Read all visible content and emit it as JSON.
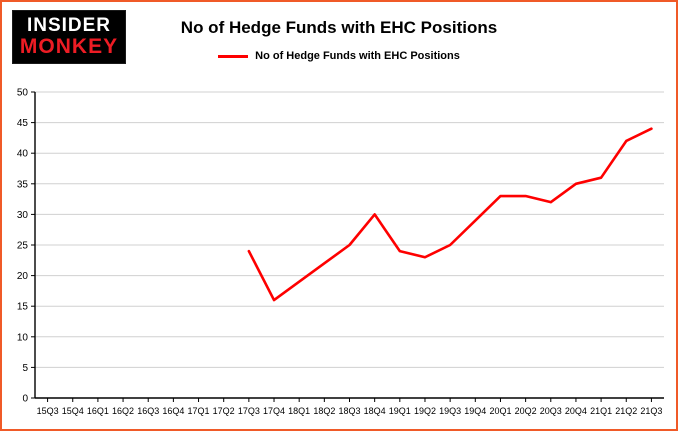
{
  "colors": {
    "frame_border": "#f05a28",
    "line": "#fe0000",
    "grid": "#d0d0d0",
    "axis": "#000000",
    "logo_bg": "#000000",
    "logo_insider": "#ffffff",
    "logo_monkey": "#ed1c24"
  },
  "header": {
    "logo_line1": "INSIDER",
    "logo_line2": "MONKEY",
    "title": "No of Hedge Funds with EHC Positions"
  },
  "legend": {
    "label": "No of Hedge Funds with EHC Positions"
  },
  "chart_data": {
    "type": "line",
    "title": "No of Hedge Funds with EHC Positions",
    "categories": [
      "15Q3",
      "15Q4",
      "16Q1",
      "16Q2",
      "16Q3",
      "16Q4",
      "17Q1",
      "17Q2",
      "17Q3",
      "17Q4",
      "18Q1",
      "18Q2",
      "18Q3",
      "18Q4",
      "19Q1",
      "19Q2",
      "19Q3",
      "19Q4",
      "20Q1",
      "20Q2",
      "20Q3",
      "20Q4",
      "21Q1",
      "21Q2",
      "21Q3"
    ],
    "series": [
      {
        "name": "No of Hedge Funds with EHC Positions",
        "values": [
          null,
          null,
          null,
          null,
          null,
          null,
          null,
          null,
          24,
          16,
          19,
          22,
          25,
          30,
          24,
          23,
          25,
          29,
          33,
          33,
          32,
          35,
          36,
          42,
          44
        ]
      }
    ],
    "ylim": [
      0,
      50
    ],
    "ytick_step": 5,
    "grid": true,
    "legend_position": "top"
  }
}
